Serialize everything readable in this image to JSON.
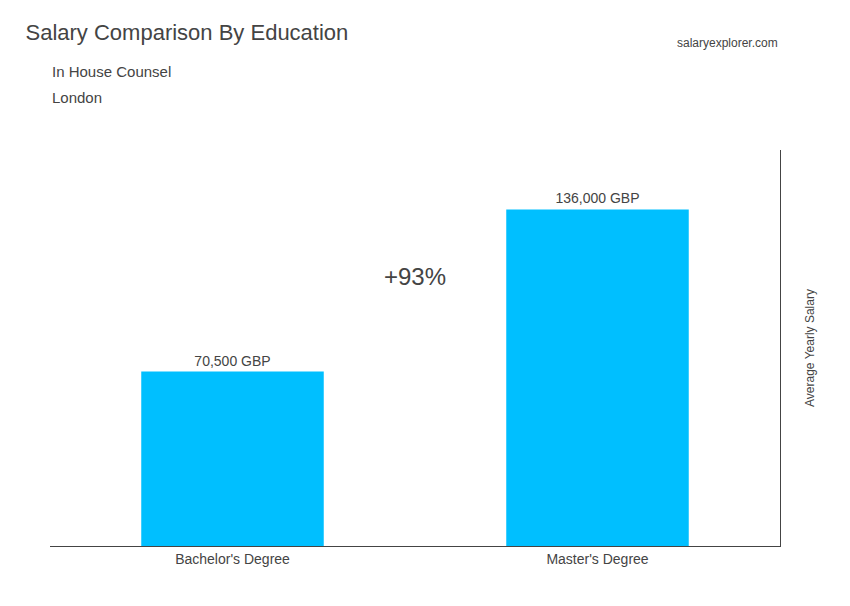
{
  "chart_data": {
    "type": "bar",
    "title": "Salary Comparison By Education",
    "subtitle": "In House Counsel",
    "annotations": [
      "London",
      "salaryexplorer.com",
      "+93%"
    ],
    "ylabel": "Average Yearly Salary",
    "categories": [
      "Bachelor's Degree",
      "Master's Degree"
    ],
    "values": [
      70500,
      136000
    ],
    "value_labels": [
      "70,500 GBP",
      "136,000 GBP"
    ],
    "data_labels": true,
    "color": "#00BFFF",
    "ylim": [
      0,
      160000
    ],
    "tick_labels": "x",
    "grid": false
  }
}
